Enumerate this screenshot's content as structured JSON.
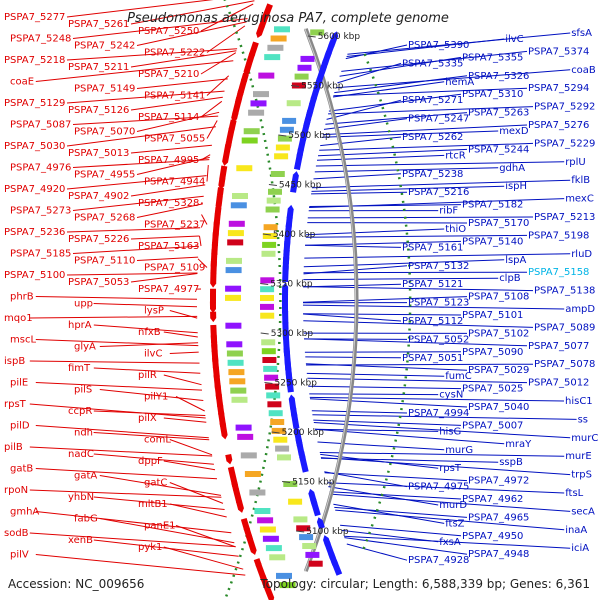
{
  "title": "Pseudomonas aeruginosa PA7, complete genome",
  "accession": "Accession: NC_009656",
  "summary": "Topology: circular; Length: 6,588,339 bp; Genes: 6,361",
  "colors": {
    "left_label": "#e00000",
    "right_label": "#0010c0",
    "highlight_label": "#00b4e6",
    "reverse_feature": "#e60000",
    "forward_feature": "#1a1aff",
    "backbone": "#888888",
    "gc_skew": "#2a8a2a"
  },
  "scale_ticks": [
    "5600 kbp",
    "5550 kbp",
    "5500 kbp",
    "5450 kbp",
    "5400 kbp",
    "5350 kbp",
    "5300 kbp",
    "5250 kbp",
    "5200 kbp",
    "5150 kbp",
    "5100 kbp"
  ],
  "left_labels": [
    "PSPA7_5277",
    "PSPA7_5261",
    "PSPA7_5250",
    "PSPA7_5248",
    "PSPA7_5242",
    "PSPA7_5222",
    "PSPA7_5218",
    "PSPA7_5211",
    "PSPA7_5210",
    "coaE",
    "PSPA7_5149",
    "PSPA7_5141",
    "PSPA7_5129",
    "PSPA7_5126",
    "PSPA7_5114",
    "PSPA7_5087",
    "PSPA7_5070",
    "PSPA7_5055",
    "PSPA7_5030",
    "PSPA7_5013",
    "PSPA7_4995",
    "PSPA7_4976",
    "PSPA7_4955",
    "PSPA7_4944",
    "PSPA7_4920",
    "PSPA7_4902",
    "PSPA7_5328",
    "PSPA7_5273",
    "PSPA7_5268",
    "PSPA7_5237",
    "PSPA7_5236",
    "PSPA7_5226",
    "PSPA7_5163",
    "PSPA7_5185",
    "PSPA7_5110",
    "PSPA7_5109",
    "PSPA7_5100",
    "PSPA7_5053",
    "PSPA7_4977",
    "phrB",
    "upp",
    "lysP",
    "mqo1",
    "hprA",
    "nfxB",
    "mscL",
    "glyA",
    "ilvC",
    "ispB",
    "fimT",
    "pilR",
    "pilE",
    "pilS",
    "pilY1",
    "rpsT",
    "ccpR",
    "pilX",
    "pilD",
    "ndh",
    "comL",
    "pilB",
    "nadC",
    "dppF",
    "gatB",
    "gatA",
    "gatC",
    "rpoN",
    "yhbN",
    "mltB1",
    "gmhA",
    "fabG",
    "panE1",
    "sodB",
    "xenB",
    "pyk1",
    "pilV"
  ],
  "right_labels": [
    "sfsA",
    "ilvC",
    "PSPA7_5390",
    "PSPA7_5374",
    "PSPA7_5355",
    "PSPA7_5335",
    "coaB",
    "PSPA7_5326",
    "hemA",
    "PSPA7_5294",
    "PSPA7_5310",
    "PSPA7_5271",
    "PSPA7_5292",
    "PSPA7_5263",
    "PSPA7_5247",
    "PSPA7_5276",
    "mexD",
    "PSPA7_5262",
    "PSPA7_5229",
    "PSPA7_5244",
    "rtcR",
    "rplU",
    "gdhA",
    "PSPA7_5238",
    "fklB",
    "ispH",
    "PSPA7_5216",
    "mexC",
    "PSPA7_5182",
    "ribF",
    "PSPA7_5213",
    "PSPA7_5170",
    "thiO",
    "PSPA7_5198",
    "PSPA7_5140",
    "PSPA7_5161",
    "rluD",
    "lspA",
    "PSPA7_5132",
    "PSPA7_5158",
    "clpB",
    "PSPA7_5121",
    "PSPA7_5138",
    "PSPA7_5108",
    "PSPA7_5123",
    "ampD",
    "PSPA7_5101",
    "PSPA7_5112",
    "PSPA7_5089",
    "PSPA7_5102",
    "PSPA7_5052",
    "PSPA7_5077",
    "PSPA7_5090",
    "PSPA7_5051",
    "PSPA7_5078",
    "PSPA7_5029",
    "fumC",
    "PSPA7_5012",
    "PSPA7_5025",
    "cysN",
    "hisC1",
    "PSPA7_5040",
    "PSPA7_4994",
    "ss",
    "PSPA7_5007",
    "hisG",
    "murC",
    "mraY",
    "murG",
    "murE",
    "sspB",
    "rpsT",
    "trpS",
    "PSPA7_4972",
    "PSPA7_4975",
    "ftsL",
    "PSPA7_4962",
    "murD",
    "secA",
    "PSPA7_4965",
    "ftsZ",
    "inaA",
    "PSPA7_4950",
    "fxsA",
    "iciA",
    "PSPA7_4948",
    "PSPA7_4928"
  ]
}
